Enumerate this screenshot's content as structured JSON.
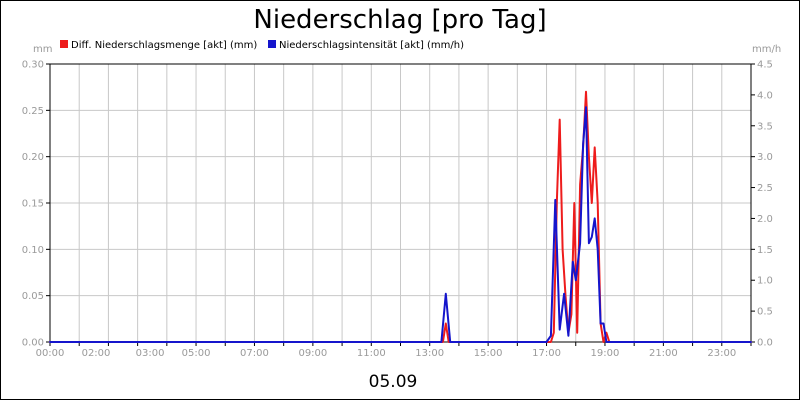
{
  "chart_data": {
    "type": "line",
    "title": "Niederschlag [pro Tag]",
    "date_label": "05.09",
    "y_left_unit": "mm",
    "y_right_unit": "mm/h",
    "x_range_hours": [
      0,
      24
    ],
    "y_left_range": [
      0,
      0.3
    ],
    "y_right_range": [
      0,
      4.5
    ],
    "x_tick_labels": [
      {
        "hour": 0,
        "label": "00:00"
      },
      {
        "hour": 2,
        "label": "02:00"
      },
      {
        "hour": 3,
        "label": "03:00"
      },
      {
        "hour": 5,
        "label": "05:00"
      },
      {
        "hour": 7,
        "label": "07:00"
      },
      {
        "hour": 9,
        "label": "09:00"
      },
      {
        "hour": 11,
        "label": "11:00"
      },
      {
        "hour": 13,
        "label": "13:00"
      },
      {
        "hour": 15,
        "label": "15:00"
      },
      {
        "hour": 17,
        "label": "17:00"
      },
      {
        "hour": 19,
        "label": "19:00"
      },
      {
        "hour": 21,
        "label": "21:00"
      },
      {
        "hour": 23,
        "label": "23:00"
      }
    ],
    "x_grid_hours": [
      0,
      1,
      2,
      3,
      4,
      5,
      6,
      7,
      8,
      9,
      10,
      11,
      12,
      13,
      14,
      15,
      16,
      17,
      18,
      19,
      20,
      21,
      22,
      23,
      24
    ],
    "y_left_ticks": [
      "0.00",
      "0.05",
      "0.10",
      "0.15",
      "0.20",
      "0.25",
      "0.30"
    ],
    "y_right_ticks": [
      "0.0",
      "0.5",
      "1.0",
      "1.5",
      "2.0",
      "2.5",
      "3.0",
      "3.5",
      "4.0",
      "4.5"
    ],
    "grid": true,
    "legend_position": "top",
    "series": [
      {
        "name": "Diff. Niederschlagsmenge [akt] (mm)",
        "axis": "left",
        "color": "#ee1c1c",
        "points": [
          [
            0,
            0
          ],
          [
            13.45,
            0
          ],
          [
            13.55,
            0.02
          ],
          [
            13.65,
            0
          ],
          [
            17.0,
            0
          ],
          [
            17.15,
            0
          ],
          [
            17.25,
            0.01
          ],
          [
            17.35,
            0.15
          ],
          [
            17.45,
            0.24
          ],
          [
            17.55,
            0.1
          ],
          [
            17.65,
            0.05
          ],
          [
            17.75,
            0.01
          ],
          [
            17.85,
            0.03
          ],
          [
            17.95,
            0.15
          ],
          [
            18.05,
            0.01
          ],
          [
            18.15,
            0.17
          ],
          [
            18.25,
            0.21
          ],
          [
            18.35,
            0.27
          ],
          [
            18.45,
            0.2
          ],
          [
            18.55,
            0.15
          ],
          [
            18.65,
            0.21
          ],
          [
            18.75,
            0.15
          ],
          [
            18.85,
            0.02
          ],
          [
            18.95,
            0.0
          ],
          [
            19.05,
            0.01
          ],
          [
            19.15,
            0
          ],
          [
            24,
            0
          ]
        ]
      },
      {
        "name": "Niederschlagsintensität [akt] (mm/h)",
        "axis": "right",
        "color": "#1515cc",
        "points": [
          [
            0,
            0
          ],
          [
            13.4,
            0
          ],
          [
            13.55,
            0.78
          ],
          [
            13.7,
            0
          ],
          [
            17.0,
            0
          ],
          [
            17.15,
            0.1
          ],
          [
            17.3,
            2.3
          ],
          [
            17.45,
            0.2
          ],
          [
            17.6,
            0.78
          ],
          [
            17.75,
            0.1
          ],
          [
            17.9,
            1.3
          ],
          [
            18.0,
            1.0
          ],
          [
            18.15,
            1.6
          ],
          [
            18.25,
            3.2
          ],
          [
            18.35,
            3.8
          ],
          [
            18.45,
            1.6
          ],
          [
            18.55,
            1.7
          ],
          [
            18.65,
            2.0
          ],
          [
            18.75,
            1.5
          ],
          [
            18.85,
            0.3
          ],
          [
            18.95,
            0.3
          ],
          [
            19.05,
            0
          ],
          [
            24,
            0
          ]
        ]
      }
    ]
  }
}
